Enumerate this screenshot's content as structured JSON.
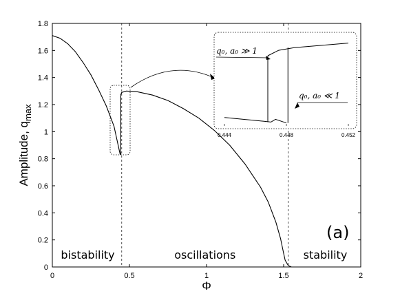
{
  "chart_data": {
    "type": "line",
    "panel_label": "(a)",
    "xlabel": "Φ",
    "ylabel": "Amplitude, q",
    "ylabel_subscript": "max",
    "xlim": [
      0,
      2
    ],
    "ylim": [
      0,
      1.8
    ],
    "x_ticks": [
      "0",
      "0.5",
      "1",
      "1.5",
      "2"
    ],
    "y_ticks": [
      "0",
      "0.2",
      "0.4",
      "0.6",
      "0.8",
      "1",
      "1.2",
      "1.4",
      "1.6",
      "1.8"
    ],
    "vlines": [
      0.45,
      1.53
    ],
    "regions": [
      {
        "label": "bistability",
        "x": 0.23
      },
      {
        "label": "oscillations",
        "x": 0.99
      },
      {
        "label": "stability",
        "x": 1.77
      }
    ],
    "series": [
      {
        "points": [
          [
            0,
            1.71
          ],
          [
            0.05,
            1.69
          ],
          [
            0.1,
            1.65
          ],
          [
            0.15,
            1.59
          ],
          [
            0.2,
            1.51
          ],
          [
            0.25,
            1.42
          ],
          [
            0.3,
            1.31
          ],
          [
            0.35,
            1.19
          ],
          [
            0.4,
            1.04
          ],
          [
            0.44,
            0.83
          ]
        ]
      },
      {
        "points": [
          [
            0.443,
            1.27
          ],
          [
            0.45,
            1.29
          ],
          [
            0.48,
            1.3
          ],
          [
            0.55,
            1.295
          ],
          [
            0.65,
            1.27
          ],
          [
            0.75,
            1.23
          ],
          [
            0.85,
            1.17
          ],
          [
            0.95,
            1.1
          ],
          [
            1.05,
            1.01
          ],
          [
            1.15,
            0.9
          ],
          [
            1.25,
            0.76
          ],
          [
            1.35,
            0.59
          ],
          [
            1.4,
            0.48
          ],
          [
            1.45,
            0.33
          ],
          [
            1.48,
            0.21
          ],
          [
            1.5,
            0.1
          ],
          [
            1.51,
            0.05
          ],
          [
            1.53,
            0.01
          ],
          [
            1.55,
            0.0
          ]
        ]
      }
    ],
    "switch_segments": [
      [
        [
          0.444,
          0.83
        ],
        [
          0.444,
          1.27
        ]
      ]
    ],
    "inset": {
      "xlim": [
        0.444,
        0.452
      ],
      "x_ticks": [
        "0.444",
        "0.448",
        "0.452"
      ],
      "annotations": [
        {
          "text": "q₀, a₀ ≫ 1"
        },
        {
          "text": "q₀, a₀ ≪ 1"
        }
      ],
      "lower_branch": [
        [
          0.444,
          0.1
        ],
        [
          0.4465,
          0.06
        ],
        [
          0.447,
          0.05
        ],
        [
          0.4473,
          0.08
        ],
        [
          0.448,
          0.04
        ]
      ],
      "upper_branch": [
        [
          0.4468,
          0.78
        ],
        [
          0.4475,
          0.84
        ],
        [
          0.4485,
          0.87
        ],
        [
          0.452,
          0.92
        ]
      ],
      "jump_up_x": 0.4468,
      "jump_down_x": 0.4481
    }
  }
}
